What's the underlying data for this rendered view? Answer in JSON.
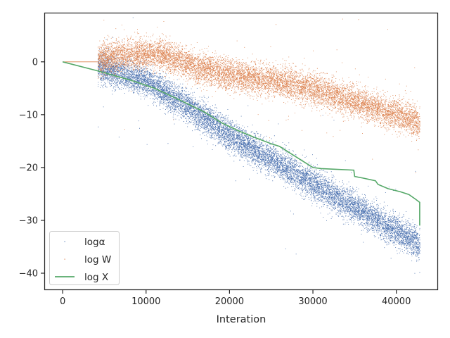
{
  "chart_data": {
    "type": "scatter",
    "xlabel": "Interation",
    "ylabel": "",
    "xlim": [
      -2200,
      45000
    ],
    "ylim": [
      -43.2,
      9.3
    ],
    "x_ticks": [
      {
        "value": 0,
        "label": "0"
      },
      {
        "value": 10000,
        "label": "10000"
      },
      {
        "value": 20000,
        "label": "20000"
      },
      {
        "value": 30000,
        "label": "30000"
      },
      {
        "value": 40000,
        "label": "40000"
      }
    ],
    "y_ticks": [
      {
        "value": 0,
        "label": "0"
      },
      {
        "value": -10,
        "label": "−10"
      },
      {
        "value": -20,
        "label": "−20"
      },
      {
        "value": -30,
        "label": "−30"
      },
      {
        "value": -40,
        "label": "−40"
      }
    ],
    "grid": false,
    "legend_position": "bottom-left",
    "series": [
      {
        "name": "logα",
        "style": "points",
        "color": "#4c72b0",
        "x_range": [
          4200,
          42800
        ],
        "trend": [
          {
            "x": 4200,
            "y": -1.0
          },
          {
            "x": 10000,
            "y": -3.5
          },
          {
            "x": 15000,
            "y": -8.5
          },
          {
            "x": 20000,
            "y": -14.0
          },
          {
            "x": 25000,
            "y": -18.5
          },
          {
            "x": 30000,
            "y": -23.0
          },
          {
            "x": 35000,
            "y": -27.5
          },
          {
            "x": 40000,
            "y": -32.0
          },
          {
            "x": 42800,
            "y": -34.5
          }
        ],
        "spread": 2.6
      },
      {
        "name": "log W",
        "style": "points",
        "color": "#dd8452",
        "x_range": [
          4200,
          42800
        ],
        "trend": [
          {
            "x": 4200,
            "y": 0.5
          },
          {
            "x": 8000,
            "y": 1.5
          },
          {
            "x": 12000,
            "y": 1.5
          },
          {
            "x": 16000,
            "y": -1.0
          },
          {
            "x": 20000,
            "y": -2.5
          },
          {
            "x": 25000,
            "y": -3.5
          },
          {
            "x": 30000,
            "y": -5.0
          },
          {
            "x": 35000,
            "y": -7.5
          },
          {
            "x": 40000,
            "y": -10.0
          },
          {
            "x": 42800,
            "y": -11.5
          }
        ],
        "spread": 2.6
      },
      {
        "name": "log X",
        "style": "line",
        "color": "#55a868",
        "points": [
          {
            "x": 0,
            "y": 0
          },
          {
            "x": 4200,
            "y": -1.7
          },
          {
            "x": 8000,
            "y": -3.4
          },
          {
            "x": 11000,
            "y": -5.0
          },
          {
            "x": 14000,
            "y": -7.2
          },
          {
            "x": 17000,
            "y": -9.5
          },
          {
            "x": 19000,
            "y": -11.5
          },
          {
            "x": 21000,
            "y": -13.0
          },
          {
            "x": 23000,
            "y": -14.3
          },
          {
            "x": 25000,
            "y": -15.5
          },
          {
            "x": 26000,
            "y": -16.0
          },
          {
            "x": 27000,
            "y": -17.0
          },
          {
            "x": 28000,
            "y": -18.0
          },
          {
            "x": 29000,
            "y": -19.0
          },
          {
            "x": 30000,
            "y": -20.0
          },
          {
            "x": 31000,
            "y": -20.2
          },
          {
            "x": 34900,
            "y": -20.5
          },
          {
            "x": 35000,
            "y": -21.7
          },
          {
            "x": 36000,
            "y": -22.0
          },
          {
            "x": 37500,
            "y": -22.5
          },
          {
            "x": 37800,
            "y": -23.2
          },
          {
            "x": 39000,
            "y": -24.0
          },
          {
            "x": 40500,
            "y": -24.6
          },
          {
            "x": 41500,
            "y": -25.1
          },
          {
            "x": 42300,
            "y": -26.0
          },
          {
            "x": 42800,
            "y": -26.6
          },
          {
            "x": 42800,
            "y": -31.0
          }
        ]
      }
    ]
  }
}
